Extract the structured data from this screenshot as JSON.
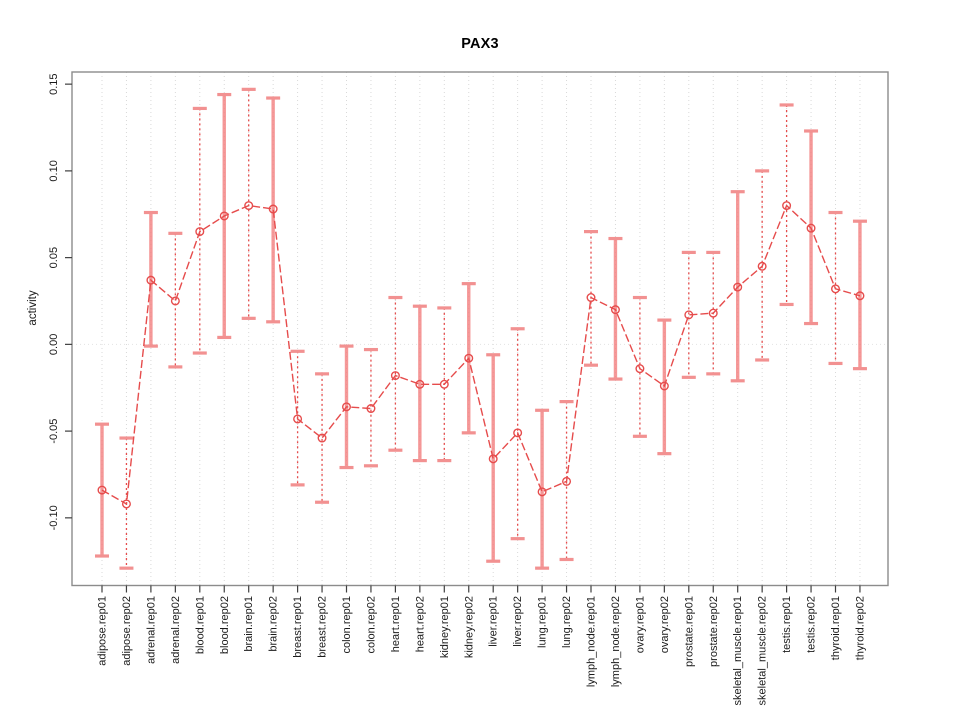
{
  "page": {
    "background": "#ffffff"
  },
  "chart_data": {
    "type": "line",
    "title": "PAX3",
    "xlabel": "",
    "ylabel": "activity",
    "legend": "none",
    "grid": "dotted vertical gridline at every category; dotted horizontal line at y=0",
    "ylim": [
      -0.139,
      0.157
    ],
    "yticks": [
      0.15,
      0.1,
      0.05,
      0.0,
      -0.05,
      -0.1
    ],
    "ytick_labels": [
      "0.15",
      "0.10",
      "0.05",
      "0.00",
      "-0.05",
      "-0.10"
    ],
    "categories": [
      "adipose.rep01",
      "adipose.rep02",
      "adrenal.rep01",
      "adrenal.rep02",
      "blood.rep01",
      "blood.rep02",
      "brain.rep01",
      "brain.rep02",
      "breast.rep01",
      "breast.rep02",
      "colon.rep01",
      "colon.rep02",
      "heart.rep01",
      "heart.rep02",
      "kidney.rep01",
      "kidney.rep02",
      "liver.rep01",
      "liver.rep02",
      "lung.rep01",
      "lung.rep02",
      "lymph_node.rep01",
      "lymph_node.rep02",
      "ovary.rep01",
      "ovary.rep02",
      "prostate.rep01",
      "prostate.rep02",
      "skeletal_muscle.rep01",
      "skeletal_muscle.rep02",
      "testis.rep01",
      "testis.rep02",
      "thyroid.rep01",
      "thyroid.rep02"
    ],
    "series": [
      {
        "name": "activity",
        "values": [
          -0.084,
          -0.092,
          0.037,
          0.025,
          0.065,
          0.074,
          0.08,
          0.078,
          -0.043,
          -0.054,
          -0.036,
          -0.037,
          -0.018,
          -0.023,
          -0.023,
          -0.008,
          -0.066,
          -0.051,
          -0.085,
          -0.079,
          0.027,
          0.02,
          -0.014,
          -0.024,
          0.017,
          0.018,
          0.033,
          0.045,
          0.08,
          0.067,
          0.032,
          0.028
        ],
        "error_low": [
          -0.122,
          -0.129,
          -0.001,
          -0.013,
          -0.005,
          0.004,
          0.015,
          0.013,
          -0.081,
          -0.091,
          -0.071,
          -0.07,
          -0.061,
          -0.067,
          -0.067,
          -0.051,
          -0.125,
          -0.112,
          -0.129,
          -0.124,
          -0.012,
          -0.02,
          -0.053,
          -0.063,
          -0.019,
          -0.017,
          -0.021,
          -0.009,
          0.023,
          0.012,
          -0.011,
          -0.014
        ],
        "error_high": [
          -0.046,
          -0.054,
          0.076,
          0.064,
          0.136,
          0.144,
          0.147,
          0.142,
          -0.004,
          -0.017,
          -0.001,
          -0.003,
          0.027,
          0.022,
          0.021,
          0.035,
          -0.006,
          0.009,
          -0.038,
          -0.033,
          0.065,
          0.061,
          0.027,
          0.014,
          0.053,
          0.053,
          0.088,
          0.1,
          0.138,
          0.123,
          0.076,
          0.071
        ]
      }
    ],
    "errorbar_line_styles": [
      "solid",
      "dotted",
      "solid",
      "dotted",
      "dotted",
      "solid",
      "dotted",
      "solid",
      "dotted",
      "dotted",
      "solid",
      "dotted",
      "dotted",
      "solid",
      "dotted",
      "solid",
      "solid",
      "dotted",
      "solid",
      "dotted",
      "dotted",
      "solid",
      "dotted",
      "solid",
      "dotted",
      "dotted",
      "solid",
      "dotted",
      "dotted",
      "solid",
      "dotted",
      "solid"
    ],
    "marker": "open-circle",
    "colors": {
      "series": "#e64c4c",
      "error_bar_solid": "#f37e7e",
      "error_cap": "#f29191",
      "grid": "#d9d9d9",
      "zero_line": "#e2e2e2",
      "frame": "#8c8c8c",
      "tick": "#3f3f3f",
      "text": "#1a1a1a"
    }
  }
}
